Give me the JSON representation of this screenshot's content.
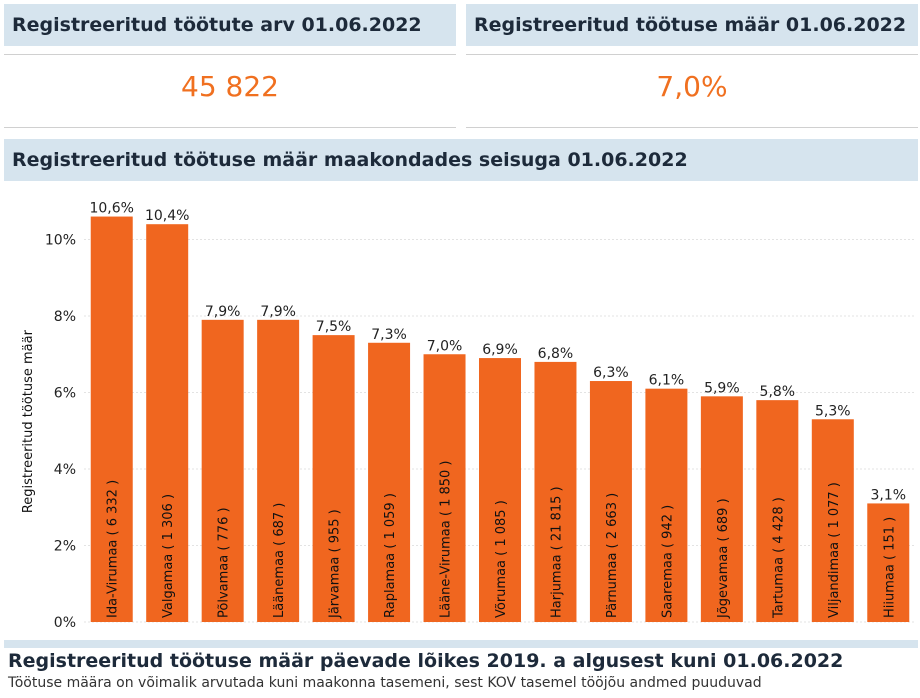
{
  "kpis": {
    "count_title": "Registreeritud töötute arv 01.06.2022",
    "count_value": "45 822",
    "rate_title": "Registreeritud töötuse määr 01.06.2022",
    "rate_value": "7,0%"
  },
  "section": {
    "title": "Registreeritud töötuse määr maakondades seisuga 01.06.2022"
  },
  "footer": {
    "title": "Registreeritud töötuse määr päevade lõikes 2019. a algusest kuni 01.06.2022",
    "subtitle": "Töötuse määra on võimalik arvutada kuni maakonna tasemeni, sest KOV tasemel tööjõu andmed puuduvad"
  },
  "colors": {
    "bar": "#f0661f",
    "header_bg": "#d6e4ee",
    "kpi_value": "#f07020"
  },
  "chart_data": {
    "type": "bar",
    "ylabel": "Registreeritud töötuse määr",
    "ylim": [
      0,
      11
    ],
    "yticks": [
      0,
      2,
      4,
      6,
      8,
      10
    ],
    "ytick_labels": [
      "0%",
      "2%",
      "4%",
      "6%",
      "8%",
      "10%"
    ],
    "grid": true,
    "categories": [
      "Ida-Virumaa ( 6 332 )",
      "Valgamaa ( 1 306 )",
      "Põlvamaa ( 776 )",
      "Läänemaa ( 687 )",
      "Järvamaa ( 955 )",
      "Raplamaa ( 1 059 )",
      "Lääne-Virumaa ( 1 850 )",
      "Võrumaa ( 1 085 )",
      "Harjumaa ( 21 815 )",
      "Pärnumaa ( 2 663 )",
      "Saaremaa ( 942 )",
      "Jõgevamaa ( 689 )",
      "Tartumaa ( 4 428 )",
      "Viljandimaa ( 1 077 )",
      "Hiiumaa ( 151 )"
    ],
    "values": [
      10.6,
      10.4,
      7.9,
      7.9,
      7.5,
      7.3,
      7.0,
      6.9,
      6.8,
      6.3,
      6.1,
      5.9,
      5.8,
      5.3,
      3.1
    ],
    "value_labels": [
      "10,6%",
      "10,4%",
      "7,9%",
      "7,9%",
      "7,5%",
      "7,3%",
      "7,0%",
      "6,9%",
      "6,8%",
      "6,3%",
      "6,1%",
      "5,9%",
      "5,8%",
      "5,3%",
      "3,1%"
    ]
  }
}
